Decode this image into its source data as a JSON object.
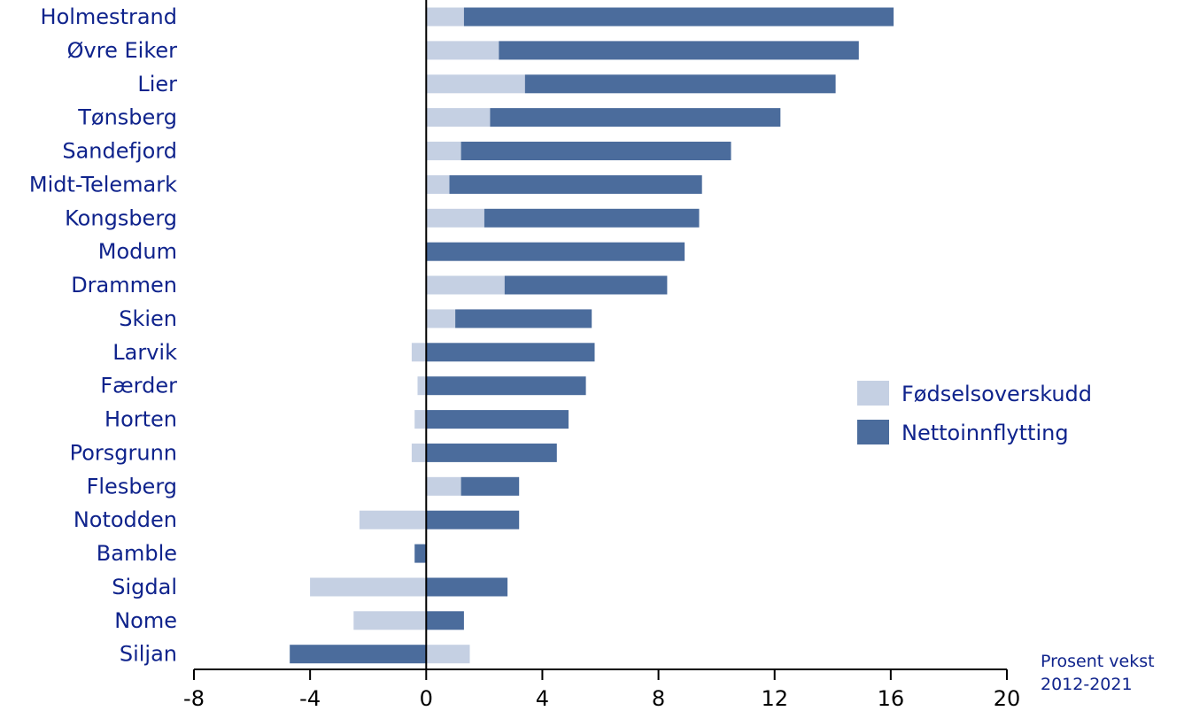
{
  "chart_data": {
    "type": "bar",
    "orientation": "horizontal",
    "stacked": true,
    "categories": [
      "Holmestrand",
      "Øvre Eiker",
      "Lier",
      "Tønsberg",
      "Sandefjord",
      "Midt-Telemark",
      "Kongsberg",
      "Modum",
      "Drammen",
      "Skien",
      "Larvik",
      "Færder",
      "Horten",
      "Porsgrunn",
      "Flesberg",
      "Notodden",
      "Bamble",
      "Sigdal",
      "Nome",
      "Siljan"
    ],
    "series": [
      {
        "name": "Fødselsoverskudd",
        "color": "#c5d0e3",
        "values": [
          1.3,
          2.5,
          3.4,
          2.2,
          1.2,
          0.8,
          2.0,
          0.0,
          2.7,
          1.0,
          -0.5,
          -0.3,
          -0.4,
          -0.5,
          1.2,
          -2.3,
          0.0,
          -4.0,
          -2.5,
          1.5
        ]
      },
      {
        "name": "Nettoinnflytting",
        "color": "#4b6c9c",
        "values": [
          14.8,
          12.4,
          10.7,
          10.0,
          9.3,
          8.7,
          7.4,
          8.9,
          5.6,
          4.7,
          5.8,
          5.5,
          4.9,
          4.5,
          2.0,
          3.2,
          -0.4,
          2.8,
          1.3,
          -4.7
        ]
      }
    ],
    "xticks": [
      "-8",
      "-4",
      "0",
      "4",
      "8",
      "12",
      "16",
      "20"
    ],
    "xlim": [
      -8,
      20
    ],
    "xlabel": "Prosent vekst\n2012-2021",
    "legend_position": "right",
    "grid": false
  },
  "text": {
    "legend_1": "Fødselsoverskudd",
    "legend_2": "Nettoinnflytting",
    "unit_line1": "Prosent vekst",
    "unit_line2": "2012-2021"
  },
  "colors": {
    "label": "#0f238c",
    "axis": "#000000"
  }
}
